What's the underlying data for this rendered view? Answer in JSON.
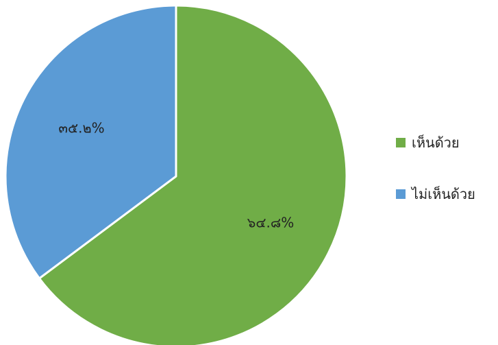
{
  "chart_data": {
    "type": "pie",
    "categories": [
      "เห็นด้วย",
      "ไม่เห็นด้วย"
    ],
    "values": [
      64.8,
      35.2
    ],
    "data_labels": [
      "๖๔.๘%",
      "๓๕.๒%"
    ],
    "colors": [
      "#70AD47",
      "#5B9BD5"
    ],
    "start_angle_deg": 0,
    "direction": "clockwise",
    "legend": {
      "position": "right",
      "entries": [
        "เห็นด้วย",
        "ไม่เห็นด้วย"
      ]
    }
  }
}
